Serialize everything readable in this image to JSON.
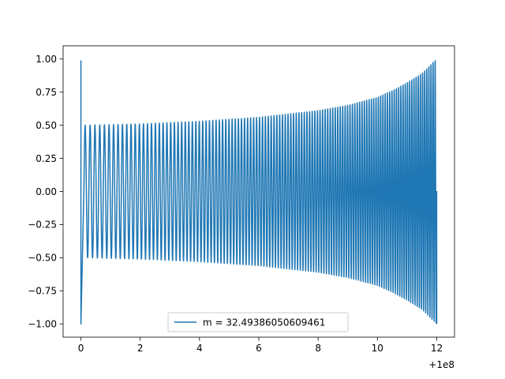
{
  "chart_data": {
    "type": "line",
    "title": "",
    "xlabel": "",
    "ylabel": "",
    "x_offset_label": "+1e8",
    "xlim": [
      -0.6,
      12.6
    ],
    "ylim": [
      -1.1,
      1.1
    ],
    "x_ticks": [
      0,
      2,
      4,
      6,
      8,
      10,
      12
    ],
    "x_tick_labels": [
      "0",
      "2",
      "4",
      "6",
      "8",
      "10",
      "12"
    ],
    "y_ticks": [
      1.0,
      0.75,
      0.5,
      0.25,
      0.0,
      -0.25,
      -0.5,
      -0.75,
      -1.0
    ],
    "y_tick_labels": [
      "1.00",
      "0.75",
      "0.50",
      "0.25",
      "0.00",
      "−0.25",
      "−0.50",
      "−0.75",
      "−1.00"
    ],
    "grid": false,
    "legend_position": "bottom-center",
    "series": [
      {
        "name": "m = 32.49386050609461",
        "color": "#1f77b4",
        "initial_spike": {
          "x": 0.0,
          "y_min": -1.0,
          "y_max": 0.99
        },
        "envelope": {
          "x": [
            0.1,
            2,
            4,
            6,
            8,
            9,
            10,
            10.5,
            11,
            11.5,
            12
          ],
          "amplitude": [
            0.5,
            0.51,
            0.53,
            0.56,
            0.61,
            0.65,
            0.71,
            0.76,
            0.82,
            0.89,
            1.0
          ]
        },
        "oscillation_count": 120
      }
    ]
  },
  "colors": {
    "series": "#1f77b4",
    "axes": "#000000",
    "background": "#ffffff"
  }
}
